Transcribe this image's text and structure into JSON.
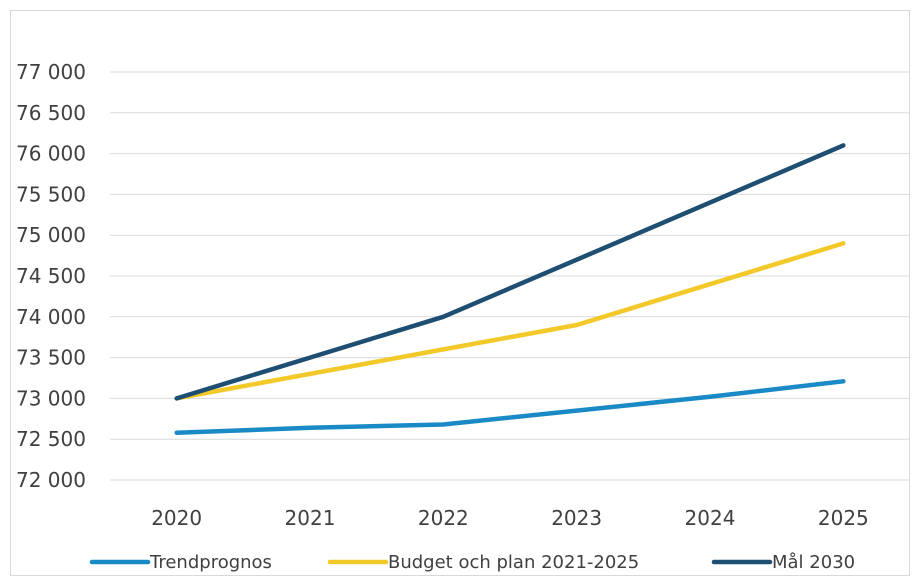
{
  "chart_data": {
    "type": "line",
    "title": "",
    "xlabel": "",
    "ylabel": "",
    "categories": [
      "2020",
      "2021",
      "2022",
      "2023",
      "2024",
      "2025"
    ],
    "ylim": [
      72000,
      77000
    ],
    "yticks": [
      72000,
      72500,
      73000,
      73500,
      74000,
      74500,
      75000,
      75500,
      76000,
      76500,
      77000
    ],
    "ytick_labels": [
      "72 000",
      "72 500",
      "73 000",
      "73 500",
      "74 000",
      "74 500",
      "75 000",
      "75 500",
      "76 000",
      "76 500",
      "77 000"
    ],
    "grid": "horizontal",
    "legend_position": "bottom",
    "series": [
      {
        "name": "Trendprognos",
        "color": "#1a8ac6",
        "values": [
          72580,
          72640,
          72680,
          72850,
          73020,
          73210
        ]
      },
      {
        "name": "Budget och plan 2021-2025",
        "color": "#f2c929",
        "values": [
          73000,
          73300,
          73600,
          73900,
          74400,
          74900
        ]
      },
      {
        "name": "Mål 2030",
        "color": "#1f4e73",
        "values": [
          73000,
          73500,
          74000,
          74700,
          75400,
          76100
        ]
      }
    ]
  }
}
